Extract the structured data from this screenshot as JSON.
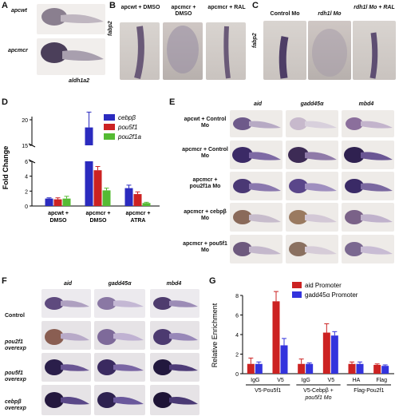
{
  "panels": {
    "A": {
      "label": "A",
      "rows": [
        "apcwt",
        "apcmcr"
      ],
      "gene": "aldh1a2"
    },
    "B": {
      "label": "B",
      "gene": "fabp2",
      "cols": [
        "apcwt + DMSO",
        "apcmcr + DMSO",
        "apcmcr + RAL"
      ]
    },
    "C": {
      "label": "C",
      "gene": "fabp2",
      "cols": [
        "Control Mo",
        "rdh1l Mo",
        "rdh1l Mo + RAL"
      ]
    },
    "D": {
      "label": "D"
    },
    "E": {
      "label": "E",
      "cols": [
        "aid",
        "gadd45α",
        "mbd4"
      ],
      "rows": [
        "apcwt + Control Mo",
        "apcmcr + Control Mo",
        "apcmcr + pou2f1a Mo",
        "apcmcr + cebpβ Mo",
        "apcmcr + pou5f1 Mo"
      ]
    },
    "F": {
      "label": "F",
      "cols": [
        "aid",
        "gadd45α",
        "mbd4"
      ],
      "rows": [
        "Control",
        "pou2f1 overexp",
        "pou5f1 overexp",
        "cebpβ overexp"
      ]
    },
    "G": {
      "label": "G"
    }
  },
  "chart_data": [
    {
      "type": "bar",
      "panel": "D",
      "ylabel": "Fold Change",
      "categories": [
        "apcwt + DMSO",
        "apcmcr + DMSO",
        "apcmcr + ATRA"
      ],
      "series": [
        {
          "name": "cebpβ",
          "color": "#2b2bbf",
          "values": [
            1.0,
            18.5,
            2.4
          ],
          "errors": [
            0.1,
            3.0,
            0.4
          ]
        },
        {
          "name": "pou5f1",
          "color": "#cc2222",
          "values": [
            0.9,
            4.8,
            1.6
          ],
          "errors": [
            0.2,
            0.5,
            0.3
          ]
        },
        {
          "name": "pou2f1a",
          "color": "#55bb33",
          "values": [
            1.0,
            2.1,
            0.4
          ],
          "errors": [
            0.3,
            0.3,
            0.1
          ]
        }
      ],
      "yticks": [
        0,
        2,
        4,
        6,
        15,
        20
      ],
      "axis_break": [
        6,
        15
      ]
    },
    {
      "type": "bar",
      "panel": "G",
      "ylabel": "Relative Enrichment",
      "categories": [
        "IgG",
        "V5",
        "IgG",
        "V5",
        "HA",
        "Flag"
      ],
      "groups": [
        "V5-Pou5f1",
        "V5-Cebpβ + pou5f1 Mo",
        "Flag-Pou2f1"
      ],
      "series": [
        {
          "name": "aid Promoter",
          "color": "#cc2222",
          "values": [
            1.0,
            7.4,
            1.0,
            4.2,
            1.0,
            0.9
          ],
          "errors": [
            0.6,
            1.0,
            0.5,
            0.9,
            0.2,
            0.1
          ]
        },
        {
          "name": "gadd45α Promoter",
          "color": "#3333dd",
          "values": [
            1.0,
            2.9,
            1.0,
            3.9,
            1.0,
            0.8
          ],
          "errors": [
            0.2,
            0.7,
            0.1,
            0.4,
            0.2,
            0.1
          ]
        }
      ],
      "ylim": [
        0,
        8
      ],
      "yticks": [
        0,
        2,
        4,
        6,
        8
      ]
    }
  ]
}
